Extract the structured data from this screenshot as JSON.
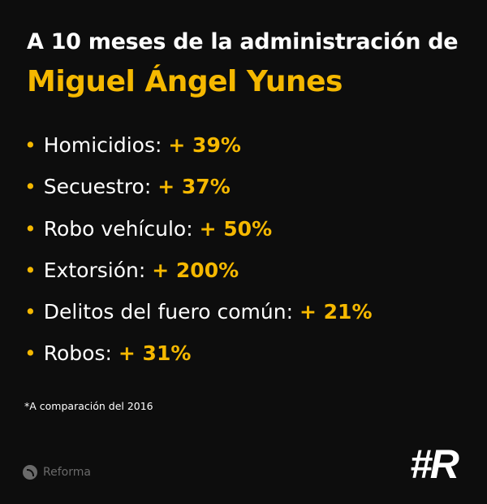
{
  "title": {
    "line1": "A 10 meses de la administración de",
    "line2": "Miguel Ángel Yunes"
  },
  "items": [
    {
      "label": "Homicidios:",
      "value": "+ 39%"
    },
    {
      "label": "Secuestro:",
      "value": "+ 37%"
    },
    {
      "label": "Robo vehículo:",
      "value": "+ 50%"
    },
    {
      "label": "Extorsión:",
      "value": "+ 200%"
    },
    {
      "label": "Delitos del fuero común:",
      "value": "+ 21%"
    },
    {
      "label": "Robos:",
      "value": "+ 31%"
    }
  ],
  "bullet": "•",
  "footnote": "*A comparación del 2016",
  "brand": {
    "icon": "rss-icon",
    "name": "Reforma"
  },
  "logo": "#R",
  "colors": {
    "background": "#0d0d0d",
    "accent": "#f5b800",
    "text": "#ffffff"
  }
}
